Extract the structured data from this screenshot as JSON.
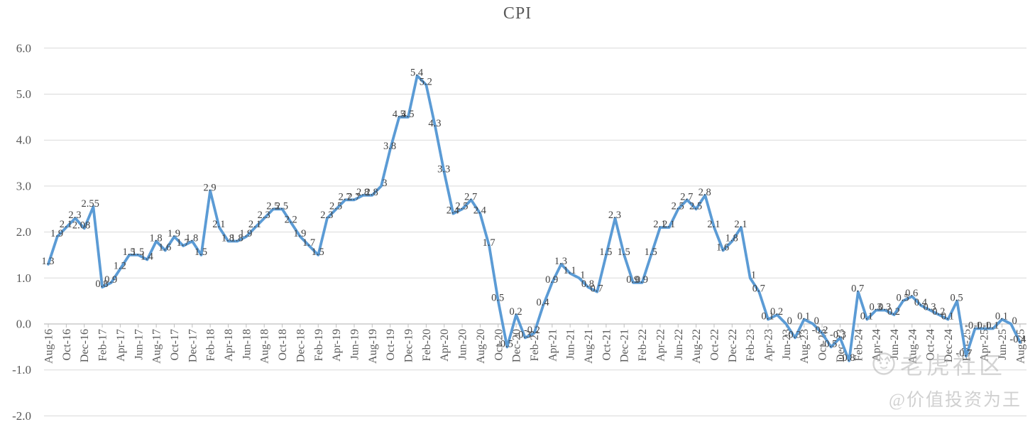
{
  "chart_data": {
    "type": "line",
    "title": "CPI",
    "legend": "none",
    "grid": true,
    "line_color": "#5b9bd5",
    "label_color": "#404040",
    "axis_text_color": "#595959",
    "gridline_color": "#d9d9d9",
    "axis_line_color": "#bfbfbf",
    "ylim": [
      -2.0,
      6.0
    ],
    "y_ticks": [
      6,
      5,
      4,
      3,
      2,
      1,
      0,
      -1,
      -2
    ],
    "y_tick_labels": [
      "6.0",
      "5.0",
      "4.0",
      "3.0",
      "2.0",
      "1.0",
      "0.0",
      "-1.0",
      "-2.0"
    ],
    "x_tick_interval": 2,
    "x": [
      "Aug-16",
      "Sep-16",
      "Oct-16",
      "Nov-16",
      "Dec-16",
      "Jan-17",
      "Feb-17",
      "Mar-17",
      "Apr-17",
      "May-17",
      "Jun-17",
      "Jul-17",
      "Aug-17",
      "Sep-17",
      "Oct-17",
      "Nov-17",
      "Dec-17",
      "Jan-18",
      "Feb-18",
      "Mar-18",
      "Apr-18",
      "May-18",
      "Jun-18",
      "Jul-18",
      "Aug-18",
      "Sep-18",
      "Oct-18",
      "Nov-18",
      "Dec-18",
      "Jan-19",
      "Feb-19",
      "Mar-19",
      "Apr-19",
      "May-19",
      "Jun-19",
      "Jul-19",
      "Aug-19",
      "Sep-19",
      "Oct-19",
      "Nov-19",
      "Dec-19",
      "Jan-20",
      "Feb-20",
      "Mar-20",
      "Apr-20",
      "May-20",
      "Jun-20",
      "Jul-20",
      "Aug-20",
      "Sep-20",
      "Oct-20",
      "Nov-20",
      "Dec-20",
      "Jan-21",
      "Feb-21",
      "Mar-21",
      "Apr-21",
      "May-21",
      "Jun-21",
      "Jul-21",
      "Aug-21",
      "Sep-21",
      "Oct-21",
      "Nov-21",
      "Dec-21",
      "Jan-22",
      "Feb-22",
      "Mar-22",
      "Apr-22",
      "May-22",
      "Jun-22",
      "Jul-22",
      "Aug-22",
      "Sep-22",
      "Oct-22",
      "Nov-22",
      "Dec-22",
      "Jan-23",
      "Feb-23",
      "Mar-23",
      "Apr-23",
      "May-23",
      "Jun-23",
      "Jul-23",
      "Aug-23",
      "Sep-23",
      "Oct-23",
      "Nov-23",
      "Dec-23",
      "Jan-24",
      "Feb-24",
      "Mar-24",
      "Apr-24",
      "May-24",
      "Jun-24",
      "Jul-24",
      "Aug-24",
      "Sep-24",
      "Oct-24",
      "Nov-24",
      "Dec-24",
      "Jan-25",
      "Feb-25",
      "Mar-25",
      "Apr-25",
      "May-25",
      "Jun-25",
      "Jul-25",
      "Aug-25"
    ],
    "values": [
      1.3,
      1.9,
      2.1,
      2.3,
      2.08,
      2.55,
      0.8,
      0.9,
      1.2,
      1.5,
      1.5,
      1.4,
      1.8,
      1.6,
      1.9,
      1.7,
      1.8,
      1.5,
      2.9,
      2.1,
      1.8,
      1.8,
      1.9,
      2.1,
      2.3,
      2.5,
      2.5,
      2.2,
      1.9,
      1.7,
      1.5,
      2.3,
      2.5,
      2.7,
      2.7,
      2.8,
      2.8,
      3,
      3.8,
      4.5,
      4.5,
      5.4,
      5.2,
      4.3,
      3.3,
      2.4,
      2.5,
      2.7,
      2.4,
      1.7,
      0.5,
      -0.5,
      0.2,
      -0.3,
      -0.2,
      0.4,
      0.9,
      1.3,
      1.1,
      1,
      0.8,
      0.7,
      1.5,
      2.3,
      1.5,
      0.9,
      0.9,
      1.5,
      2.1,
      2.1,
      2.5,
      2.7,
      2.5,
      2.8,
      2.1,
      1.6,
      1.8,
      2.1,
      1,
      0.7,
      0.1,
      0.2,
      0,
      -0.3,
      0.1,
      0,
      -0.2,
      -0.5,
      -0.3,
      -0.8,
      0.7,
      0.1,
      0.3,
      0.3,
      0.2,
      0.5,
      0.6,
      0.4,
      0.3,
      0.2,
      0.1,
      0.5,
      -0.7,
      -0.1,
      -0.1,
      -0.1,
      0.1,
      0,
      -0.4
    ],
    "data_labels": true
  },
  "watermark": {
    "community": "老虎社区",
    "handle": "@价值投资为王"
  }
}
